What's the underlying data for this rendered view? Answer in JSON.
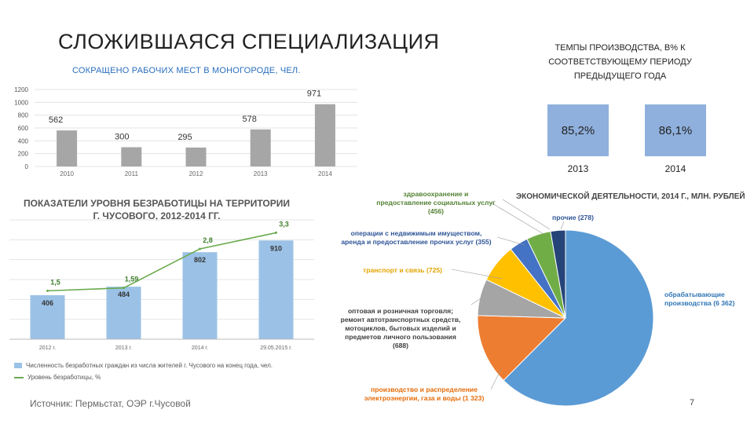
{
  "slide": {
    "title": "СЛОЖИВШАЯСЯ СПЕЦИАЛИЗАЦИЯ",
    "source": "Источник: Пермьстат, ОЭР г.Чусовой",
    "page_number": "7"
  },
  "production_rates": {
    "title_lines": [
      "ТЕМПЫ ПРОИЗВОДСТВА, В% К",
      "СООТВЕТСТВУЮЩЕМУ ПЕРИОДУ",
      "ПРЕДЫДУЩЕГО ГОДА"
    ],
    "items": [
      {
        "value": "85,2%",
        "year": "2013"
      },
      {
        "value": "86,1%",
        "year": "2014"
      }
    ],
    "box_color": "#8fb0dd"
  },
  "chart_data": [
    {
      "id": "jobs",
      "type": "bar",
      "title": "СОКРАЩЕНО РАБОЧИХ МЕСТ В МОНОГОРОДЕ, ЧЕЛ.",
      "categories": [
        "2010",
        "2011",
        "2012",
        "2013",
        "2014"
      ],
      "values": [
        562,
        300,
        295,
        578,
        971
      ],
      "data_labels": [
        "562",
        "300",
        "295",
        "578",
        "971"
      ],
      "yticks": [
        "0",
        "200",
        "400",
        "600",
        "800",
        "1000",
        "1200"
      ],
      "ylim": [
        0,
        1200
      ],
      "grid": true,
      "color": "#a6a6a6"
    },
    {
      "id": "unemployment",
      "type": "bar",
      "title_lines": [
        "ПОКАЗАТЕЛИ УРОВНЯ БЕЗРАБОТИЦЫ НА ТЕРРИТОРИИ",
        "Г. ЧУСОВОГО, 2012-2014 ГГ."
      ],
      "categories": [
        "2012 г.",
        "2013 г.",
        "2014 г.",
        "29.05.2015 г."
      ],
      "series": [
        {
          "name": "Численность безработных граждан из числа жителей г. Чусового на конец года, чел.",
          "type": "bar",
          "values": [
            406,
            484,
            802,
            910
          ],
          "labels": [
            "406",
            "484",
            "802",
            "910"
          ],
          "color": "#9bc2e6"
        },
        {
          "name": "Уровень безработицы, %",
          "type": "line",
          "values": [
            1.5,
            1.59,
            2.8,
            3.3
          ],
          "labels": [
            "1,5",
            "1,59",
            "2,8",
            "3,3"
          ],
          "color": "#6aaa4e"
        }
      ],
      "bar_ylim": [
        0,
        1100
      ],
      "line_ylim": [
        0,
        3.7
      ],
      "grid": true,
      "legend_position": "bottom"
    },
    {
      "id": "sectors",
      "type": "pie",
      "title": "ЭКОНОМИЧЕСКОЙ ДЕЯТЕЛЬНОСТИ, 2014 Г., МЛН. РУБЛЕЙ",
      "slices": [
        {
          "label_lines": [
            "обрабатывающие",
            "производства (6 362)"
          ],
          "value": 6362,
          "color": "#5b9bd5",
          "label_color": "#2f75b5"
        },
        {
          "label_lines": [
            "производство и распределение",
            "электроэнергии, газа и воды (1 323)"
          ],
          "value": 1323,
          "color": "#ed7d31",
          "label_color": "#e46c0a"
        },
        {
          "label_lines": [
            "оптовая и розничная торговля;",
            "ремонт автотранспортных средств,",
            "мотоциклов, бытовых изделий и",
            "предметов личного пользования",
            "(688)"
          ],
          "value": 688,
          "color": "#a5a5a5",
          "label_color": "#404040"
        },
        {
          "label_lines": [
            "транспорт и связь (725)"
          ],
          "value": 725,
          "color": "#ffc000",
          "label_color": "#e4a400"
        },
        {
          "label_lines": [
            "операции с недвижимым имуществом,",
            "аренда и предоставление прочих услуг (355)"
          ],
          "value": 355,
          "color": "#4472c4",
          "label_color": "#2f5597"
        },
        {
          "label_lines": [
            "здравоохранение и",
            "предоставление социальных услуг",
            "(456)"
          ],
          "value": 456,
          "color": "#70ad47",
          "label_color": "#548235"
        },
        {
          "label_lines": [
            "прочие (278)"
          ],
          "value": 278,
          "color": "#264478",
          "label_color": "#2f5597"
        }
      ]
    }
  ]
}
